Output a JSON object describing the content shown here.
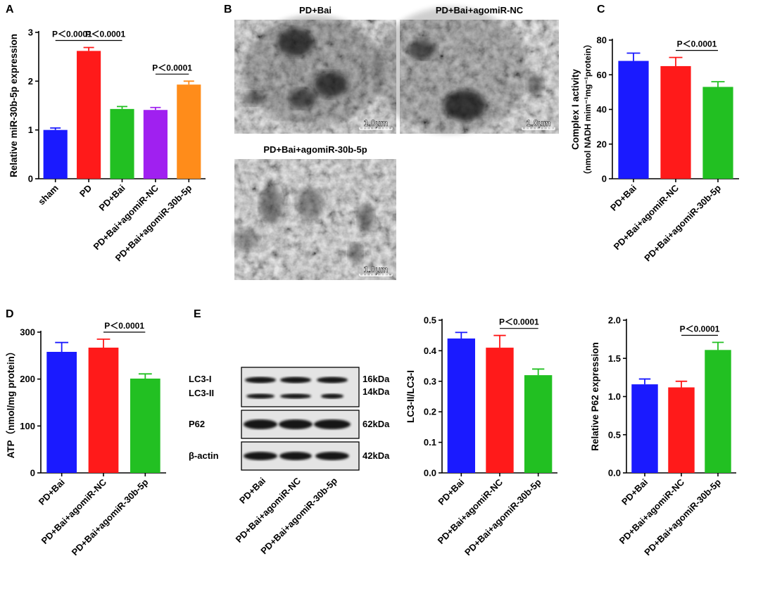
{
  "chart_data": [
    {
      "type": "bar",
      "panel": "A",
      "y_label": "Relative miR-30b-5p expression",
      "categories": [
        "sham",
        "PD",
        "PD+Bai",
        "PD+Bai+agomiR-NC",
        "PD+Bai+agomiR-30b-5p"
      ],
      "values": [
        1.0,
        2.62,
        1.43,
        1.41,
        1.93
      ],
      "errors": [
        0.04,
        0.07,
        0.05,
        0.05,
        0.07
      ],
      "colors": [
        "#1a1aff",
        "#ff1a1a",
        "#22c022",
        "#a020f0",
        "#ff8c1a"
      ],
      "ylim": [
        0,
        3
      ],
      "yticks": [
        0,
        1,
        2,
        3
      ],
      "annotations": [
        {
          "label": "P＜0.0001",
          "between": [
            "sham",
            "PD"
          ]
        },
        {
          "label": "P＜0.0001",
          "between": [
            "PD",
            "PD+Bai"
          ]
        },
        {
          "label": "P＜0.0001",
          "between": [
            "PD+Bai+agomiR-NC",
            "PD+Bai+agomiR-30b-5p"
          ]
        }
      ]
    },
    {
      "type": "bar",
      "panel": "C",
      "y_label": [
        "Complex I activity",
        "（nmol NADH mim⁻¹mg⁻¹protein）"
      ],
      "categories": [
        "PD+Bai",
        "PD+Bai+agomiR-NC",
        "PD+Bai+agomiR-30b-5p"
      ],
      "values": [
        68,
        65,
        53
      ],
      "errors": [
        4.5,
        5,
        3
      ],
      "colors": [
        "#1a1aff",
        "#ff1a1a",
        "#22c022"
      ],
      "ylim": [
        0,
        80
      ],
      "yticks": [
        0,
        20,
        40,
        60,
        80
      ],
      "annotations": [
        {
          "label": "P＜0.0001",
          "between": [
            "PD+Bai+agomiR-NC",
            "PD+Bai+agomiR-30b-5p"
          ]
        }
      ]
    },
    {
      "type": "bar",
      "panel": "D",
      "y_label": "ATP（nmol/mg protein）",
      "categories": [
        "PD+Bai",
        "PD+Bai+agomiR-NC",
        "PD+Bai+agomiR-30b-5p"
      ],
      "values": [
        258,
        267,
        201
      ],
      "errors": [
        20,
        18,
        10
      ],
      "colors": [
        "#1a1aff",
        "#ff1a1a",
        "#22c022"
      ],
      "ylim": [
        0,
        300
      ],
      "yticks": [
        0,
        100,
        200,
        300
      ],
      "annotations": [
        {
          "label": "P＜0.0001",
          "between": [
            "PD+Bai+agomiR-NC",
            "PD+Bai+agomiR-30b-5p"
          ]
        }
      ]
    },
    {
      "type": "bar",
      "y_label": "LC3-II/LC3-I",
      "categories": [
        "PD+Bai",
        "PD+Bai+agomiR-NC",
        "PD+Bai+agomiR-30b-5p"
      ],
      "values": [
        0.44,
        0.41,
        0.32
      ],
      "errors": [
        0.02,
        0.04,
        0.02
      ],
      "colors": [
        "#1a1aff",
        "#ff1a1a",
        "#22c022"
      ],
      "ylim": [
        0,
        0.5
      ],
      "yticks": [
        {
          "value": 0,
          "label": "0.0"
        },
        0.1,
        0.2,
        0.3,
        0.4,
        0.5
      ],
      "annotations": [
        {
          "label": "P＜0.0001",
          "between": [
            "PD+Bai+agomiR-NC",
            "PD+Bai+agomiR-30b-5p"
          ]
        }
      ]
    },
    {
      "type": "bar",
      "y_label": "Relative P62 expression",
      "categories": [
        "PD+Bai",
        "PD+Bai+agomiR-NC",
        "PD+Bai+agomiR-30b-5p"
      ],
      "values": [
        1.16,
        1.12,
        1.61
      ],
      "errors": [
        0.07,
        0.08,
        0.1
      ],
      "colors": [
        "#1a1aff",
        "#ff1a1a",
        "#22c022"
      ],
      "ylim": [
        0,
        2
      ],
      "yticks": [
        {
          "value": 0,
          "label": "0.0"
        },
        0.5,
        {
          "value": 1,
          "label": "1.0"
        },
        1.5,
        {
          "value": 2,
          "label": "2.0"
        }
      ],
      "annotations": [
        {
          "label": "P＜0.0001",
          "between": [
            "PD+Bai+agomiR-NC",
            "PD+Bai+agomiR-30b-5p"
          ]
        }
      ]
    }
  ],
  "micrographs": {
    "panel": "B",
    "images": [
      {
        "title": "PD+Bai",
        "scale_bar": "1.0μm"
      },
      {
        "title": "PD+Bai+agomiR-NC",
        "scale_bar": "1.0μm"
      },
      {
        "title": "PD+Bai+agomiR-30b-5p",
        "scale_bar": "1.0μm"
      }
    ]
  },
  "western_blot": {
    "panel": "E",
    "bands": [
      {
        "label": "LC3-I",
        "size": "16kDa"
      },
      {
        "label": "LC3-II",
        "size": "14kDa"
      },
      {
        "label": "P62",
        "size": "62kDa"
      },
      {
        "label": "β-actin",
        "size": "42kDa"
      }
    ],
    "lanes": [
      "PD+Bai",
      "PD+Bai+agomiR-NC",
      "PD+Bai+agomiR-30b-5p"
    ]
  }
}
